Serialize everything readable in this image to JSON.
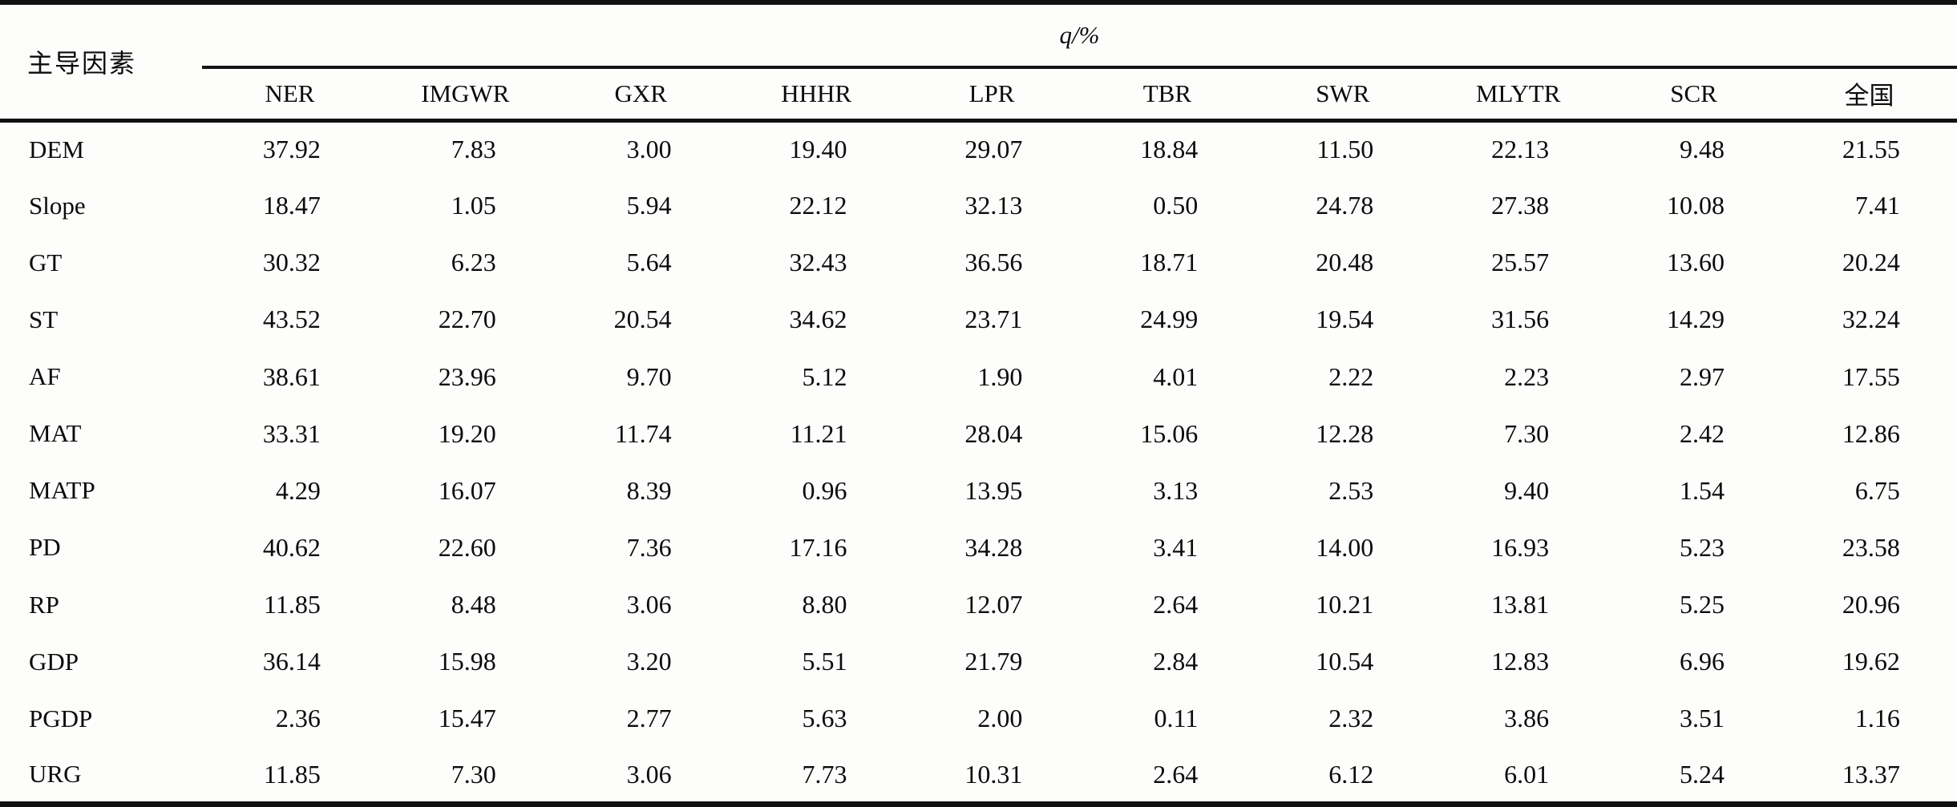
{
  "table": {
    "row_header_label": "主导因素",
    "span_header": "q/%",
    "columns": [
      "NER",
      "IMGWR",
      "GXR",
      "HHHR",
      "LPR",
      "TBR",
      "SWR",
      "MLYTR",
      "SCR",
      "全国"
    ],
    "rows": [
      {
        "label": "DEM",
        "values": [
          "37.92",
          "7.83",
          "3.00",
          "19.40",
          "29.07",
          "18.84",
          "11.50",
          "22.13",
          "9.48",
          "21.55"
        ]
      },
      {
        "label": "Slope",
        "values": [
          "18.47",
          "1.05",
          "5.94",
          "22.12",
          "32.13",
          "0.50",
          "24.78",
          "27.38",
          "10.08",
          "7.41"
        ]
      },
      {
        "label": "GT",
        "values": [
          "30.32",
          "6.23",
          "5.64",
          "32.43",
          "36.56",
          "18.71",
          "20.48",
          "25.57",
          "13.60",
          "20.24"
        ]
      },
      {
        "label": "ST",
        "values": [
          "43.52",
          "22.70",
          "20.54",
          "34.62",
          "23.71",
          "24.99",
          "19.54",
          "31.56",
          "14.29",
          "32.24"
        ]
      },
      {
        "label": "AF",
        "values": [
          "38.61",
          "23.96",
          "9.70",
          "5.12",
          "1.90",
          "4.01",
          "2.22",
          "2.23",
          "2.97",
          "17.55"
        ]
      },
      {
        "label": "MAT",
        "values": [
          "33.31",
          "19.20",
          "11.74",
          "11.21",
          "28.04",
          "15.06",
          "12.28",
          "7.30",
          "2.42",
          "12.86"
        ]
      },
      {
        "label": "MATP",
        "values": [
          "4.29",
          "16.07",
          "8.39",
          "0.96",
          "13.95",
          "3.13",
          "2.53",
          "9.40",
          "1.54",
          "6.75"
        ]
      },
      {
        "label": "PD",
        "values": [
          "40.62",
          "22.60",
          "7.36",
          "17.16",
          "34.28",
          "3.41",
          "14.00",
          "16.93",
          "5.23",
          "23.58"
        ]
      },
      {
        "label": "RP",
        "values": [
          "11.85",
          "8.48",
          "3.06",
          "8.80",
          "12.07",
          "2.64",
          "10.21",
          "13.81",
          "5.25",
          "20.96"
        ]
      },
      {
        "label": "GDP",
        "values": [
          "36.14",
          "15.98",
          "3.20",
          "5.51",
          "21.79",
          "2.84",
          "10.54",
          "12.83",
          "6.96",
          "19.62"
        ]
      },
      {
        "label": "PGDP",
        "values": [
          "2.36",
          "15.47",
          "2.77",
          "5.63",
          "2.00",
          "0.11",
          "2.32",
          "3.86",
          "3.51",
          "1.16"
        ]
      },
      {
        "label": "URG",
        "values": [
          "11.85",
          "7.30",
          "3.06",
          "7.73",
          "10.31",
          "2.64",
          "6.12",
          "6.01",
          "5.24",
          "13.37"
        ]
      }
    ]
  },
  "colors": {
    "rule": "#111111",
    "text": "#0b0b0b",
    "background": "#fdfdfc"
  }
}
